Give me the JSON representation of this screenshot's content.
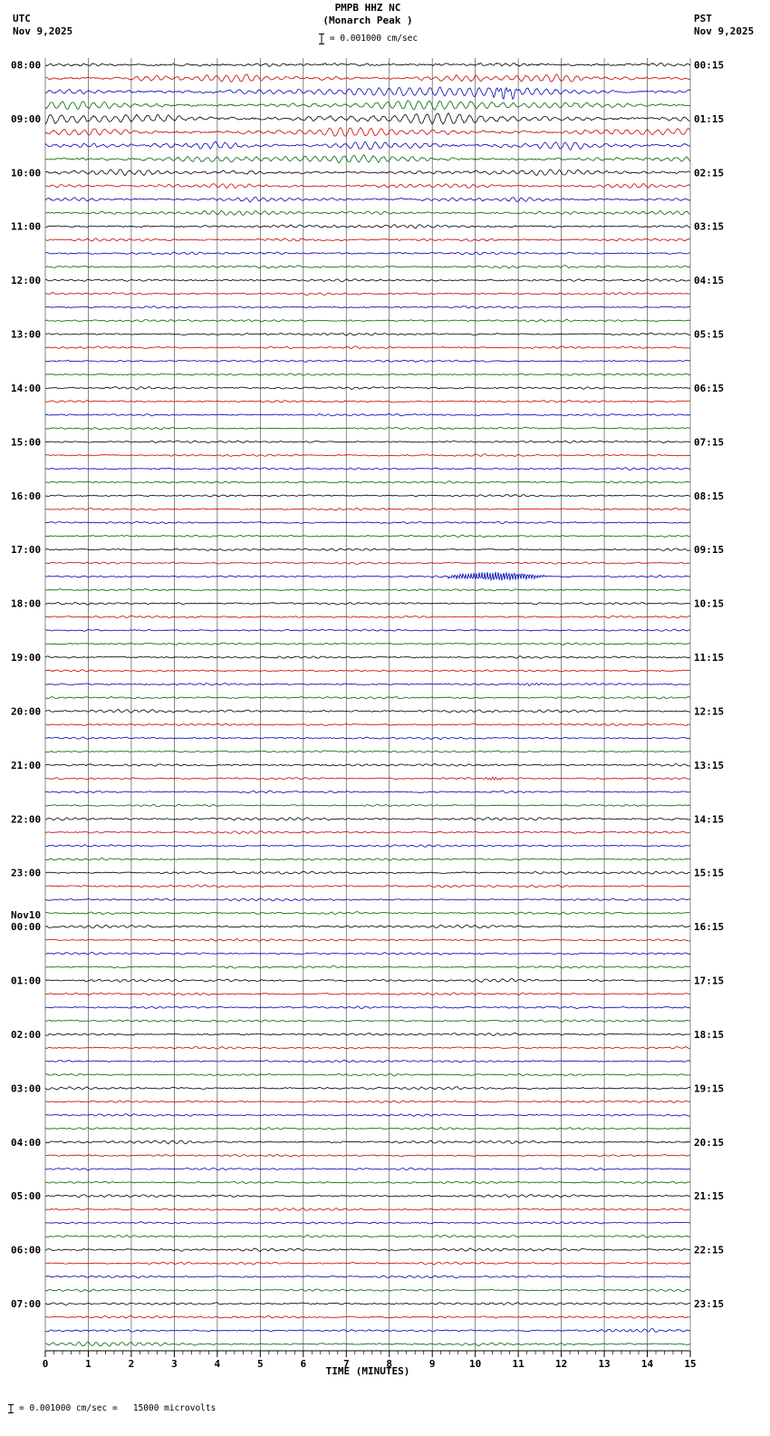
{
  "header": {
    "title": "PMPB HHZ NC",
    "subtitle": "(Monarch Peak )",
    "scale_text": "= 0.001000 cm/sec",
    "left": {
      "tz": "UTC",
      "date": "Nov 9,2025"
    },
    "right": {
      "tz": "PST",
      "date": "Nov 9,2025"
    }
  },
  "footer": {
    "note": "= 0.001000 cm/sec =   15000 microvolts"
  },
  "chart_data": {
    "type": "line",
    "title": "PMPB HHZ NC",
    "subtitle": "(Monarch Peak )",
    "xlabel": "TIME (MINUTES)",
    "x_ticks": [
      "0",
      "1",
      "2",
      "3",
      "4",
      "5",
      "6",
      "7",
      "8",
      "9",
      "10",
      "11",
      "12",
      "13",
      "14",
      "15"
    ],
    "x_range": [
      0,
      15
    ],
    "minutes_per_row": 15,
    "utc_start": "08:00",
    "date_break_label": "Nov10",
    "grid": "vertical-minute-lines",
    "legend_position": "none",
    "row_color_cycle": [
      "black",
      "red",
      "blue",
      "green"
    ],
    "palette": {
      "black": "#000000",
      "red": "#cc0000",
      "blue": "#0000bb",
      "green": "#006600"
    },
    "notable_events": [
      {
        "utc_row": "17:30",
        "color": "blue",
        "start_min": 9.2,
        "end_min": 11.8,
        "description": "high-frequency burst"
      },
      {
        "utc_rows": "08:00-10:00",
        "description": "elevated long-period microseism amplitude"
      }
    ],
    "rows": [
      {
        "c": "black",
        "l": "08:00",
        "r": "00:15",
        "o": 1.2,
        "a": 1.0
      },
      {
        "c": "red",
        "o": 4.0,
        "a": 1.0,
        "f": 4.3
      },
      {
        "c": "blue",
        "o": 4.2,
        "a": 1.0,
        "f": 4.3,
        "ev": [
          {
            "s": 8.3,
            "e": 13.6,
            "a": 3.5,
            "f": 4.5
          },
          {
            "s": 10.3,
            "e": 11.1,
            "a": 4.0,
            "f": 9
          }
        ]
      },
      {
        "c": "green",
        "o": 5.0,
        "a": 1.0,
        "f": 4.1
      },
      {
        "c": "black",
        "l": "09:00",
        "r": "01:15",
        "o": 6.0,
        "a": 1.1,
        "f": 4.0
      },
      {
        "c": "red",
        "o": 4.5,
        "a": 1.0,
        "f": 4.2
      },
      {
        "c": "blue",
        "o": 4.2,
        "a": 1.0,
        "f": 4.3,
        "ev": [
          {
            "s": 0,
            "e": 4,
            "a": 1.6,
            "f": 4.5
          }
        ]
      },
      {
        "c": "green",
        "o": 4.0,
        "a": 1.0,
        "f": 4.4
      },
      {
        "c": "black",
        "l": "10:00",
        "r": "02:15",
        "o": 2.6,
        "a": 0.9,
        "f": 4.6
      },
      {
        "c": "red",
        "o": 2.2,
        "a": 0.8,
        "f": 4.8
      },
      {
        "c": "blue",
        "o": 2.0,
        "a": 0.8
      },
      {
        "c": "green",
        "o": 2.0,
        "a": 0.8
      },
      {
        "c": "black",
        "l": "11:00",
        "r": "03:15",
        "o": 1.4,
        "a": 0.8
      },
      {
        "c": "red",
        "o": 1.2,
        "a": 0.7
      },
      {
        "c": "blue",
        "o": 1.1,
        "a": 0.7
      },
      {
        "c": "green",
        "o": 1.1,
        "a": 0.7
      },
      {
        "c": "black",
        "l": "12:00",
        "r": "04:15",
        "o": 1.0,
        "a": 0.7
      },
      {
        "c": "red",
        "o": 0.9
      },
      {
        "c": "blue",
        "o": 0.85
      },
      {
        "c": "green",
        "o": 0.85
      },
      {
        "c": "black",
        "l": "13:00",
        "r": "05:15",
        "o": 0.85
      },
      {
        "c": "red",
        "o": 0.85
      },
      {
        "c": "blue",
        "o": 0.8
      },
      {
        "c": "green",
        "o": 0.8
      },
      {
        "c": "black",
        "l": "14:00",
        "r": "06:15",
        "o": 0.95
      },
      {
        "c": "red",
        "o": 0.8
      },
      {
        "c": "blue",
        "o": 0.8
      },
      {
        "c": "green",
        "o": 0.8
      },
      {
        "c": "black",
        "l": "15:00",
        "r": "07:15",
        "o": 0.8
      },
      {
        "c": "red",
        "o": 0.8
      },
      {
        "c": "blue",
        "o": 0.75
      },
      {
        "c": "green",
        "o": 0.8
      },
      {
        "c": "black",
        "l": "16:00",
        "r": "08:15",
        "o": 0.75
      },
      {
        "c": "red",
        "o": 0.75
      },
      {
        "c": "blue",
        "o": 0.7
      },
      {
        "c": "green",
        "o": 0.75
      },
      {
        "c": "black",
        "l": "17:00",
        "r": "09:15",
        "o": 0.8
      },
      {
        "c": "red",
        "o": 0.7
      },
      {
        "c": "blue",
        "o": 0.7,
        "ev": [
          {
            "s": 9.2,
            "e": 11.8,
            "a": 4.5,
            "f": 16
          }
        ]
      },
      {
        "c": "green",
        "o": 0.7
      },
      {
        "c": "black",
        "l": "18:00",
        "r": "10:15",
        "o": 0.85
      },
      {
        "c": "red",
        "o": 0.75
      },
      {
        "c": "blue",
        "o": 0.75
      },
      {
        "c": "green",
        "o": 0.75
      },
      {
        "c": "black",
        "l": "19:00",
        "r": "11:15",
        "o": 0.9
      },
      {
        "c": "red",
        "o": 0.75
      },
      {
        "c": "blue",
        "o": 0.75,
        "ev": [
          {
            "s": 10.8,
            "e": 11.8,
            "a": 1.2,
            "f": 9
          }
        ]
      },
      {
        "c": "green",
        "o": 0.75
      },
      {
        "c": "black",
        "l": "20:00",
        "r": "12:15",
        "o": 1.2,
        "a": 0.65
      },
      {
        "c": "red",
        "o": 0.8
      },
      {
        "c": "blue",
        "o": 0.8
      },
      {
        "c": "green",
        "o": 0.8
      },
      {
        "c": "black",
        "l": "21:00",
        "r": "13:15",
        "o": 1.0,
        "a": 0.65
      },
      {
        "c": "red",
        "o": 0.75,
        "ev": [
          {
            "s": 10.2,
            "e": 10.7,
            "a": 1.6,
            "f": 13
          }
        ]
      },
      {
        "c": "blue",
        "o": 0.85
      },
      {
        "c": "green",
        "o": 0.8
      },
      {
        "c": "black",
        "l": "22:00",
        "r": "14:15",
        "o": 1.4,
        "a": 0.7
      },
      {
        "c": "red",
        "o": 0.95,
        "a": 0.65
      },
      {
        "c": "blue",
        "o": 0.85
      },
      {
        "c": "green",
        "o": 0.85,
        "a": 0.65
      },
      {
        "c": "black",
        "l": "23:00",
        "r": "15:15",
        "o": 1.1,
        "a": 0.65
      },
      {
        "c": "red",
        "o": 0.95,
        "a": 0.65
      },
      {
        "c": "blue",
        "o": 0.85
      },
      {
        "c": "green",
        "o": 0.9,
        "a": 0.65
      },
      {
        "c": "black",
        "l": "00:00",
        "d": "Nov10",
        "r": "16:15",
        "o": 1.25,
        "a": 0.7
      },
      {
        "c": "red",
        "o": 0.85
      },
      {
        "c": "blue",
        "o": 0.85
      },
      {
        "c": "green",
        "o": 0.85
      },
      {
        "c": "black",
        "l": "01:00",
        "r": "17:15",
        "o": 1.25,
        "a": 0.7
      },
      {
        "c": "red",
        "o": 0.85
      },
      {
        "c": "blue",
        "o": 0.85
      },
      {
        "c": "green",
        "o": 0.85
      },
      {
        "c": "black",
        "l": "02:00",
        "r": "18:15",
        "o": 1.05,
        "a": 0.65
      },
      {
        "c": "red",
        "o": 0.85
      },
      {
        "c": "blue",
        "o": 0.95
      },
      {
        "c": "green",
        "o": 0.85
      },
      {
        "c": "black",
        "l": "03:00",
        "r": "19:15",
        "o": 1.1,
        "a": 0.65
      },
      {
        "c": "red",
        "o": 0.85
      },
      {
        "c": "blue",
        "o": 0.95
      },
      {
        "c": "green",
        "o": 0.85
      },
      {
        "c": "black",
        "l": "04:00",
        "r": "20:15",
        "o": 1.35,
        "a": 0.7
      },
      {
        "c": "red",
        "o": 0.85
      },
      {
        "c": "blue",
        "o": 0.85
      },
      {
        "c": "green",
        "o": 0.85
      },
      {
        "c": "black",
        "l": "05:00",
        "r": "21:15",
        "o": 1.05,
        "a": 0.65
      },
      {
        "c": "red",
        "o": 0.95
      },
      {
        "c": "blue",
        "o": 0.85
      },
      {
        "c": "green",
        "o": 0.95
      },
      {
        "c": "black",
        "l": "06:00",
        "r": "22:15",
        "o": 1.25,
        "a": 0.7
      },
      {
        "c": "red",
        "o": 0.95
      },
      {
        "c": "blue",
        "o": 0.95
      },
      {
        "c": "green",
        "o": 0.95
      },
      {
        "c": "black",
        "l": "07:00",
        "r": "23:15",
        "o": 1.05,
        "a": 0.65
      },
      {
        "c": "red",
        "o": 0.95
      },
      {
        "c": "blue",
        "o": 0.95,
        "ev": [
          {
            "s": 12.5,
            "e": 14.5,
            "a": 1.3,
            "f": 6
          }
        ]
      },
      {
        "c": "green",
        "o": 1.05,
        "a": 0.65,
        "ev": [
          {
            "s": 0,
            "e": 3,
            "a": 1.4,
            "f": 5
          }
        ]
      }
    ]
  }
}
